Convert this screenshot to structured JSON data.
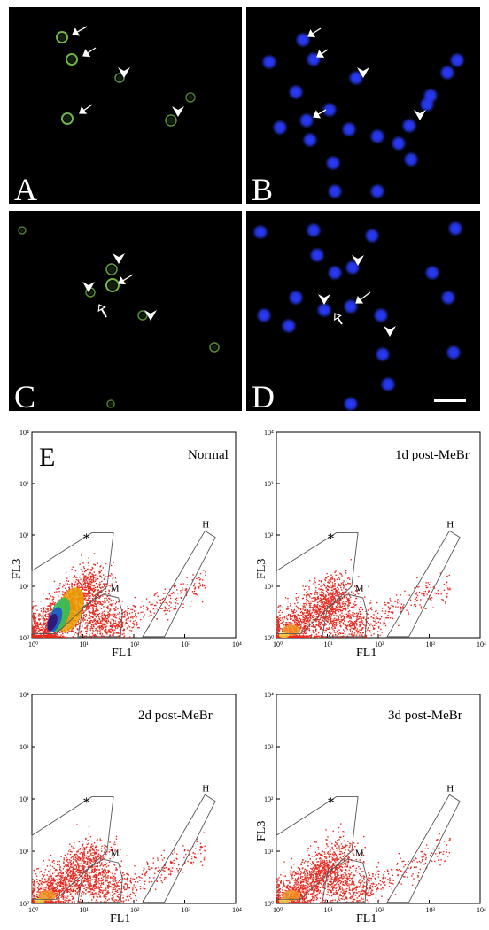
{
  "figure": {
    "micrographs": [
      {
        "letter": "A",
        "stain": "green",
        "color": "#7ec850"
      },
      {
        "letter": "B",
        "stain": "blue",
        "color": "#2a3cff"
      },
      {
        "letter": "C",
        "stain": "green",
        "color": "#7ec850"
      },
      {
        "letter": "D",
        "stain": "blue",
        "color": "#2a3cff"
      }
    ],
    "panel_e_letter": "E"
  },
  "chart_data": [
    {
      "type": "scatter",
      "title": "Normal",
      "xlabel": "FL1",
      "ylabel": "FL3",
      "xscale": "log",
      "yscale": "log",
      "xlim": [
        1,
        10000
      ],
      "ylim": [
        1,
        10000
      ],
      "x_ticks": [
        "10⁰",
        "10¹",
        "10²",
        "10³",
        "10⁴"
      ],
      "y_ticks": [
        "10⁰",
        "10¹",
        "10²",
        "10³",
        "10⁴"
      ],
      "gates": [
        "*",
        "M",
        "H"
      ],
      "density": "high"
    },
    {
      "type": "scatter",
      "title": "1d post-MeBr",
      "xlabel": "FL1",
      "ylabel": "FL3",
      "xscale": "log",
      "yscale": "log",
      "xlim": [
        1,
        10000
      ],
      "ylim": [
        1,
        10000
      ],
      "x_ticks": [
        "10⁰",
        "10¹",
        "10²",
        "10³",
        "10⁴"
      ],
      "y_ticks": [
        "10⁰",
        "10¹",
        "10²",
        "10³",
        "10⁴"
      ],
      "gates": [
        "*",
        "M",
        "H"
      ],
      "density": "medium"
    },
    {
      "type": "scatter",
      "title": "2d post-MeBr",
      "xlabel": "FL1",
      "ylabel": "",
      "xscale": "log",
      "yscale": "log",
      "xlim": [
        1,
        10000
      ],
      "ylim": [
        1,
        10000
      ],
      "x_ticks": [
        "10⁰",
        "10¹",
        "10²",
        "10³",
        "10⁴"
      ],
      "y_ticks": [
        "10⁰",
        "10¹",
        "10²",
        "10³",
        "10⁴"
      ],
      "gates": [
        "*",
        "M",
        "H"
      ],
      "density": "medium"
    },
    {
      "type": "scatter",
      "title": "3d post-MeBr",
      "xlabel": "FL1",
      "ylabel": "FL3",
      "xscale": "log",
      "yscale": "log",
      "xlim": [
        1,
        10000
      ],
      "ylim": [
        1,
        10000
      ],
      "x_ticks": [
        "10⁰",
        "10¹",
        "10²",
        "10³",
        "10⁴"
      ],
      "y_ticks": [
        "10⁰",
        "10¹",
        "10²",
        "10³",
        "10⁴"
      ],
      "gates": [
        "*",
        "M",
        "H"
      ],
      "density": "medium"
    }
  ]
}
